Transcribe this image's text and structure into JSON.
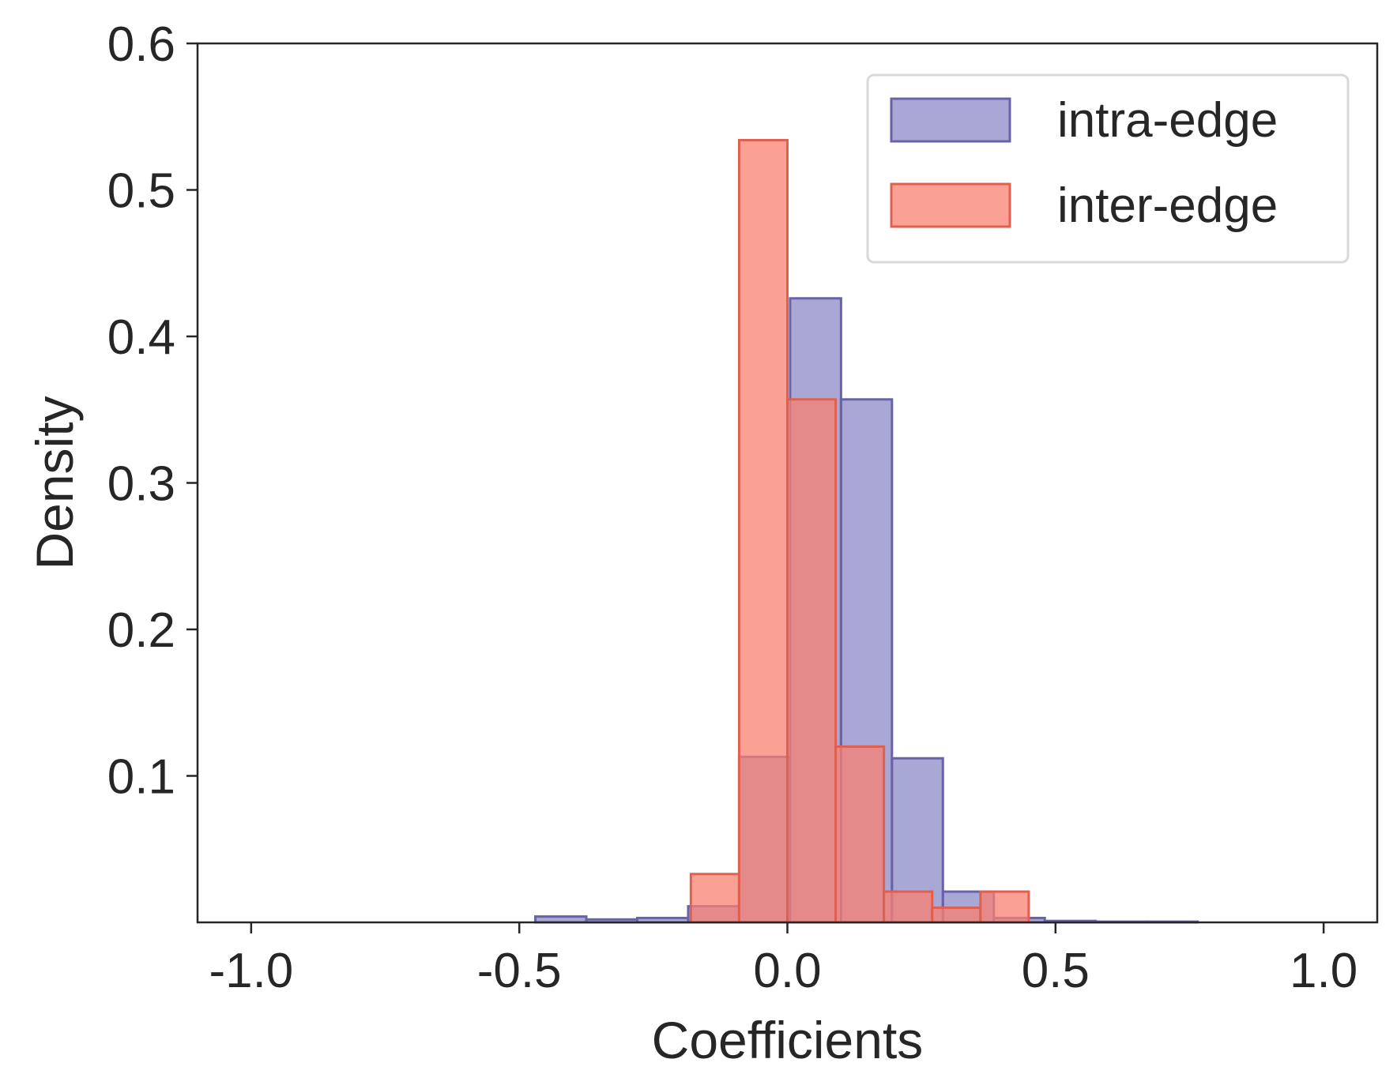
{
  "chart_data": {
    "type": "histogram",
    "title": "",
    "xlabel": "Coefficients",
    "ylabel": "Density",
    "xlim": [
      -1.1,
      1.1
    ],
    "ylim": [
      0,
      0.6
    ],
    "xticks": [
      -1.0,
      -0.5,
      0.0,
      0.5,
      1.0
    ],
    "xtick_labels": [
      "-1.0",
      "-0.5",
      "0.0",
      "0.5",
      "1.0"
    ],
    "yticks": [
      0.1,
      0.2,
      0.3,
      0.4,
      0.5,
      0.6
    ],
    "ytick_labels": [
      "0.1",
      "0.2",
      "0.3",
      "0.4",
      "0.5",
      "0.6"
    ],
    "grid": false,
    "legend_position": "top-right",
    "series": [
      {
        "name": "intra-edge",
        "label": "intra-edge",
        "color": "#8c89c4",
        "edge_color": "#6a62a8",
        "bins": [
          {
            "x0": -0.47,
            "x1": -0.375,
            "value": 0.004
          },
          {
            "x0": -0.375,
            "x1": -0.28,
            "value": 0.002
          },
          {
            "x0": -0.28,
            "x1": -0.185,
            "value": 0.003
          },
          {
            "x0": -0.185,
            "x1": -0.09,
            "value": 0.011
          },
          {
            "x0": -0.09,
            "x1": 0.005,
            "value": 0.113
          },
          {
            "x0": 0.005,
            "x1": 0.1,
            "value": 0.426
          },
          {
            "x0": 0.1,
            "x1": 0.195,
            "value": 0.357
          },
          {
            "x0": 0.195,
            "x1": 0.29,
            "value": 0.112
          },
          {
            "x0": 0.29,
            "x1": 0.385,
            "value": 0.021
          },
          {
            "x0": 0.385,
            "x1": 0.48,
            "value": 0.003
          },
          {
            "x0": 0.48,
            "x1": 0.575,
            "value": 0.001
          },
          {
            "x0": 0.575,
            "x1": 0.67,
            "value": 0.0005
          },
          {
            "x0": 0.67,
            "x1": 0.765,
            "value": 0.0005
          }
        ]
      },
      {
        "name": "inter-edge",
        "label": "inter-edge",
        "color": "#fa8072",
        "edge_color": "#e0604f",
        "bins": [
          {
            "x0": -0.18,
            "x1": -0.09,
            "value": 0.033
          },
          {
            "x0": -0.09,
            "x1": 0.0,
            "value": 0.534
          },
          {
            "x0": 0.0,
            "x1": 0.09,
            "value": 0.357
          },
          {
            "x0": 0.09,
            "x1": 0.18,
            "value": 0.12
          },
          {
            "x0": 0.18,
            "x1": 0.27,
            "value": 0.021
          },
          {
            "x0": 0.27,
            "x1": 0.36,
            "value": 0.01
          },
          {
            "x0": 0.36,
            "x1": 0.45,
            "value": 0.021
          }
        ]
      }
    ]
  }
}
